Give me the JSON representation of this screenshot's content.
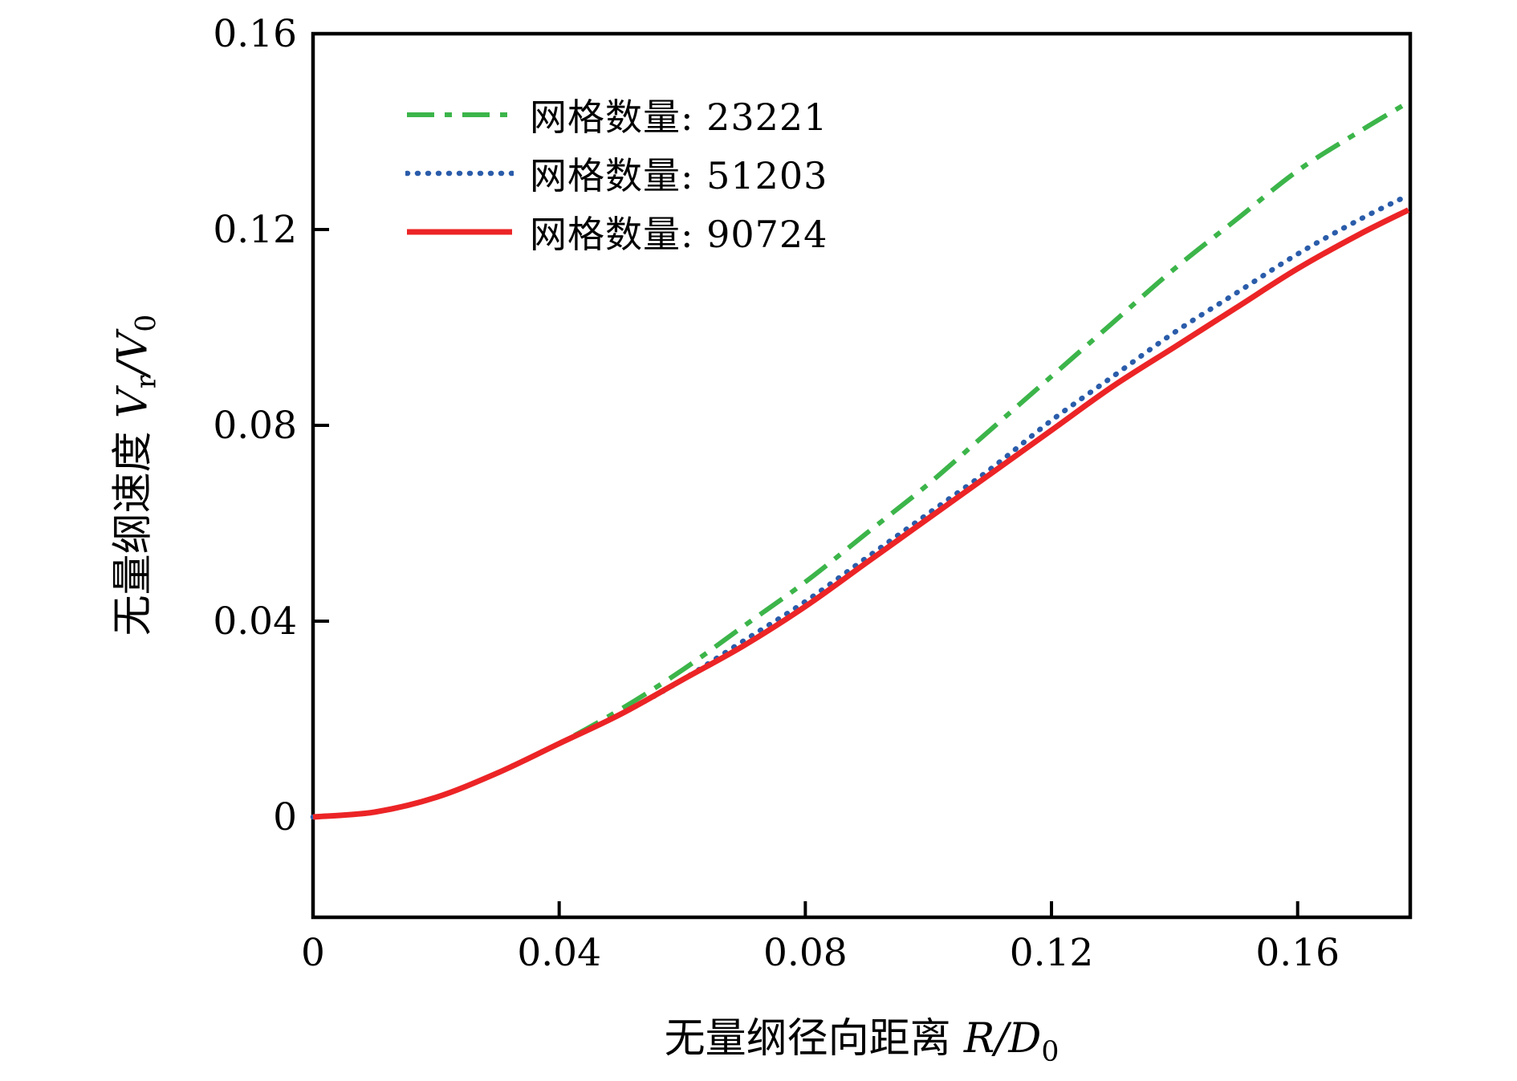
{
  "figure": {
    "background": "#ffffff",
    "axis_color": "#000000"
  },
  "chart_data": {
    "type": "line",
    "x_range": [
      0,
      0.1783
    ],
    "y_range": [
      -0.0205,
      0.16
    ],
    "x_ticks": {
      "values": [
        0,
        0.04,
        0.08,
        0.12,
        0.16
      ],
      "labels": [
        "0",
        "0.04",
        "0.08",
        "0.12",
        "0.16"
      ]
    },
    "y_ticks": {
      "values": [
        0,
        0.04,
        0.08,
        0.12,
        0.16
      ],
      "labels": [
        "0",
        "0.04",
        "0.08",
        "0.12",
        "0.16"
      ]
    },
    "grid": false,
    "legend_position": "top-left-inside",
    "x": [
      0,
      0.01,
      0.02,
      0.03,
      0.04,
      0.05,
      0.06,
      0.07,
      0.08,
      0.09,
      0.1,
      0.11,
      0.12,
      0.13,
      0.14,
      0.15,
      0.16,
      0.17,
      0.178
    ],
    "series": [
      {
        "label": "网格数量: 23221",
        "color": "#3cb54a",
        "style": "dashdot",
        "values": [
          0,
          0.001,
          0.004,
          0.009,
          0.015,
          0.022,
          0.03,
          0.039,
          0.048,
          0.058,
          0.068,
          0.079,
          0.09,
          0.101,
          0.112,
          0.122,
          0.132,
          0.14,
          0.146
        ]
      },
      {
        "label": "网格数量: 51203",
        "color": "#2a5caa",
        "style": "dotted",
        "values": [
          0,
          0.001,
          0.004,
          0.009,
          0.015,
          0.021,
          0.028,
          0.036,
          0.044,
          0.053,
          0.062,
          0.071,
          0.081,
          0.09,
          0.099,
          0.107,
          0.115,
          0.122,
          0.127
        ]
      },
      {
        "label": "网格数量: 90724",
        "color": "#ec2426",
        "style": "solid",
        "values": [
          0,
          0.001,
          0.004,
          0.009,
          0.015,
          0.021,
          0.028,
          0.035,
          0.043,
          0.052,
          0.061,
          0.07,
          0.079,
          0.088,
          0.096,
          0.104,
          0.112,
          0.119,
          0.124
        ]
      }
    ],
    "xlabel": {
      "text": "无量纲径向距离 ",
      "math": "R/D",
      "sub": "0"
    },
    "ylabel": {
      "text": "无量纲速度 ",
      "v1": "V",
      "sub_r": "r",
      "slash": "/",
      "v2": "V",
      "sub_0": "0"
    },
    "title": ""
  }
}
